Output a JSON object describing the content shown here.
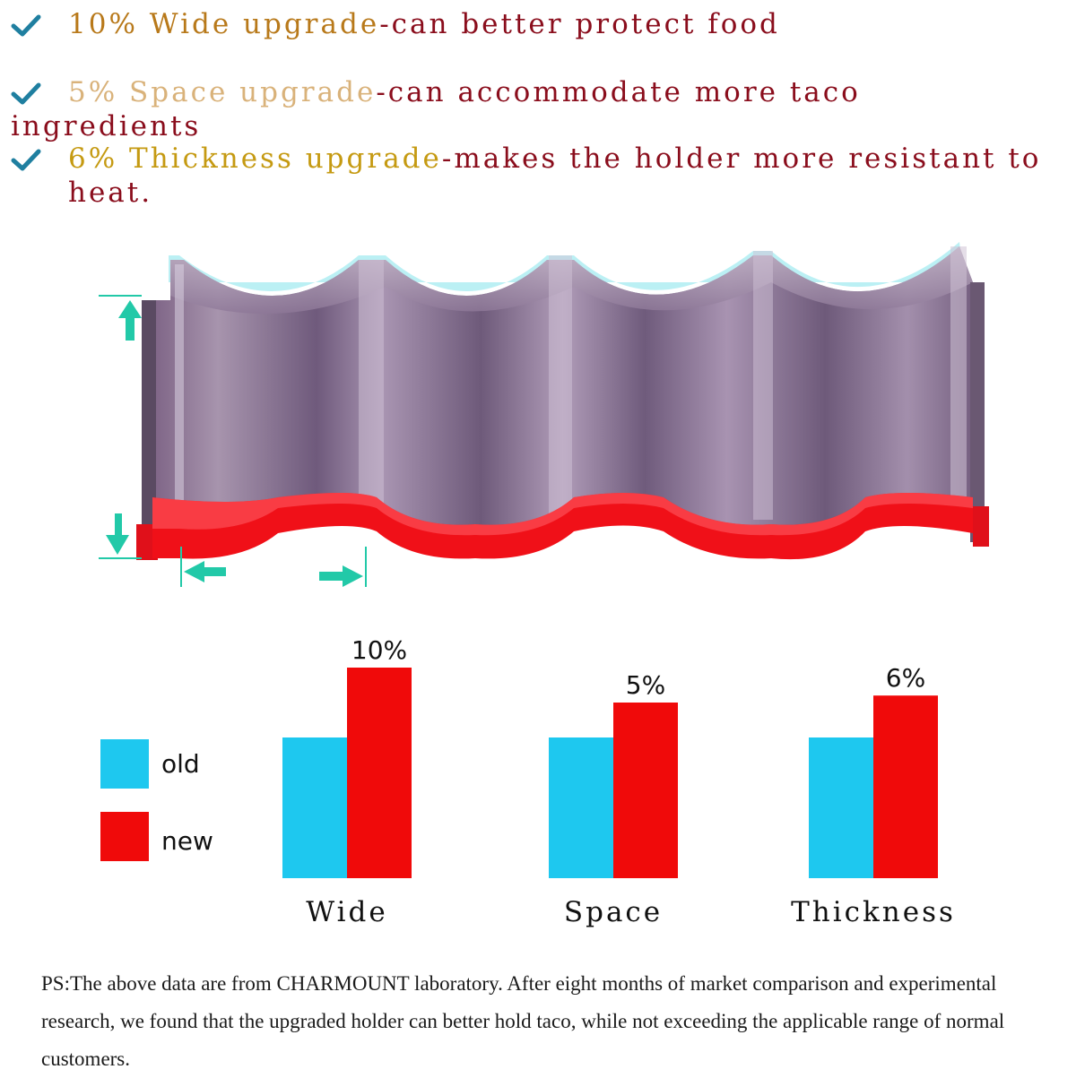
{
  "features": [
    {
      "highlight": "10% Wide upgrade",
      "description": "-can better protect food"
    },
    {
      "highlight": "5% Space upgrade",
      "description": "-can accommodate more taco ingredients"
    },
    {
      "highlight": "6% Thickness upgrade",
      "description": "-makes the holder more resistant to",
      "description_cont": "heat."
    }
  ],
  "colors": {
    "old": "#1ec8ef",
    "new": "#f00a0a",
    "check": "#1f7fa0",
    "arrow": "#22c9a8",
    "text_dark": "#8a0d1c"
  },
  "chart_data": {
    "type": "bar",
    "title": "",
    "xlabel": "",
    "ylabel": "",
    "ylim": [
      0,
      1.2
    ],
    "categories": [
      "Wide",
      "Space",
      "Thickness"
    ],
    "series": [
      {
        "name": "old",
        "values": [
          1.0,
          1.0,
          1.0
        ]
      },
      {
        "name": "new",
        "values": [
          1.1,
          1.05,
          1.06
        ]
      }
    ],
    "data_labels": [
      "10%",
      "5%",
      "6%"
    ],
    "legend": {
      "position": "left",
      "entries": [
        "old",
        "new"
      ]
    }
  },
  "footnote": "PS:The above data are from CHARMOUNT laboratory. After eight months of market comparison and experimental research, we found that the upgraded holder can better hold taco, while not exceeding the applicable range of normal customers."
}
